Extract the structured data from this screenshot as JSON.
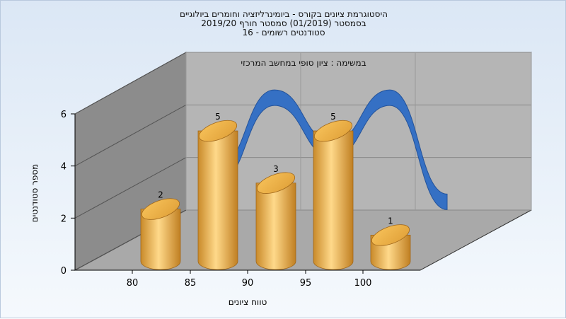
{
  "chart_data": {
    "type": "bar",
    "title_lines": [
      "היסטוגרמת ציונים בקורס - ביומינרליזציה וחומרים ביולוגיים",
      "בסמסטר  (01/2019)  סמסטר חורף 2019/20",
      "סטודנטים רשומים - 16"
    ],
    "subtitle": "במשימה : ציון סופי במחשב המרכזי",
    "xlabel": "טווח ציונים",
    "ylabel": "מספר סטודנטים",
    "x_ticks": [
      "80",
      "85",
      "90",
      "95",
      "100"
    ],
    "y_ticks": [
      "0",
      "2",
      "4",
      "6"
    ],
    "ylim": [
      0,
      6
    ],
    "categories": [
      "80",
      "85",
      "90",
      "95",
      "100"
    ],
    "values": [
      2,
      5,
      3,
      5,
      1
    ],
    "data_labels": [
      "2",
      "5",
      "3",
      "5",
      "1"
    ],
    "grid": true,
    "legend": "none",
    "colors": {
      "bar": "#f0b24a",
      "curve": "#3570c4",
      "wall": "#b5b5b5",
      "side_wall": "#8c8c8c",
      "floor": "#a9a9a9"
    }
  }
}
